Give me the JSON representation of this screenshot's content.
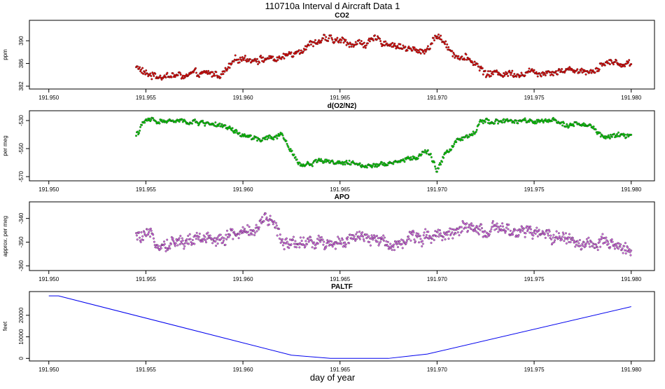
{
  "page_title": "110710a   Interval d Aircraft Data 1",
  "xlabel": "day of year",
  "chart_data": [
    {
      "type": "scatter",
      "title": "CO2",
      "ylabel": "ppm",
      "xlim": [
        191.949,
        191.9812
      ],
      "ylim": [
        381.5,
        393.6
      ],
      "xticks": [
        "191.950",
        "191.955",
        "191.960",
        "191.965",
        "191.970",
        "191.975",
        "191.980"
      ],
      "yticks": [
        "382",
        "386",
        "390"
      ],
      "color": "#ee0000",
      "x_range": [
        191.9545,
        191.98
      ],
      "anchors": [
        [
          191.9545,
          385.5
        ],
        [
          191.955,
          384.0
        ],
        [
          191.957,
          383.8
        ],
        [
          191.959,
          384.2
        ],
        [
          191.9595,
          386.0
        ],
        [
          191.96,
          387.0
        ],
        [
          191.962,
          386.8
        ],
        [
          191.963,
          388.8
        ],
        [
          191.964,
          390.2
        ],
        [
          191.966,
          389.5
        ],
        [
          191.967,
          390.0
        ],
        [
          191.968,
          389.2
        ],
        [
          191.969,
          388.0
        ],
        [
          191.9695,
          388.6
        ],
        [
          191.97,
          391.0
        ],
        [
          191.971,
          387.5
        ],
        [
          191.972,
          386.0
        ],
        [
          191.9725,
          384.2
        ],
        [
          191.975,
          384.5
        ],
        [
          191.977,
          385.0
        ],
        [
          191.978,
          384.6
        ],
        [
          191.9785,
          386.2
        ],
        [
          191.98,
          386.0
        ]
      ],
      "noise": 0.9,
      "point_count": 700
    },
    {
      "type": "scatter",
      "title": "d(O2/N2)",
      "ylabel": "per meg",
      "xlim": [
        191.949,
        191.9812
      ],
      "ylim": [
        -573,
        -523
      ],
      "xticks": [
        "191.950",
        "191.955",
        "191.960",
        "191.965",
        "191.970",
        "191.975",
        "191.980"
      ],
      "yticks": [
        "-530",
        "-550",
        "-570"
      ],
      "color": "#00dd00",
      "x_range": [
        191.9545,
        191.98
      ],
      "anchors": [
        [
          191.9545,
          -540
        ],
        [
          191.955,
          -530
        ],
        [
          191.957,
          -531
        ],
        [
          191.9585,
          -532
        ],
        [
          191.9595,
          -538
        ],
        [
          191.96,
          -541
        ],
        [
          191.961,
          -544
        ],
        [
          191.962,
          -541
        ],
        [
          191.9625,
          -552
        ],
        [
          191.963,
          -562
        ],
        [
          191.964,
          -558
        ],
        [
          191.966,
          -562
        ],
        [
          191.968,
          -559
        ],
        [
          191.969,
          -556
        ],
        [
          191.9695,
          -551
        ],
        [
          191.97,
          -566
        ],
        [
          191.9705,
          -552
        ],
        [
          191.971,
          -545
        ],
        [
          191.972,
          -540
        ],
        [
          191.9722,
          -530
        ],
        [
          191.975,
          -531
        ],
        [
          191.977,
          -532
        ],
        [
          191.978,
          -535
        ],
        [
          191.9785,
          -542
        ],
        [
          191.98,
          -540
        ]
      ],
      "noise": 2.5,
      "point_count": 700
    },
    {
      "type": "scatter",
      "title": "APO",
      "ylabel": "approx. per meg",
      "xlim": [
        191.949,
        191.9812
      ],
      "ylim": [
        -362,
        -333
      ],
      "xticks": [
        "191.950",
        "191.955",
        "191.960",
        "191.965",
        "191.970",
        "191.975",
        "191.980"
      ],
      "yticks": [
        "-340",
        "-350",
        "-360"
      ],
      "color": "#dd66ee",
      "x_range": [
        191.9545,
        191.98
      ],
      "anchors": [
        [
          191.9545,
          -348
        ],
        [
          191.956,
          -350
        ],
        [
          191.958,
          -349
        ],
        [
          191.96,
          -346
        ],
        [
          191.9615,
          -341
        ],
        [
          191.962,
          -349
        ],
        [
          191.964,
          -350
        ],
        [
          191.966,
          -349
        ],
        [
          191.968,
          -350
        ],
        [
          191.97,
          -346
        ],
        [
          191.972,
          -345
        ],
        [
          191.974,
          -346
        ],
        [
          191.976,
          -347
        ],
        [
          191.978,
          -351
        ],
        [
          191.98,
          -353
        ]
      ],
      "noise": 3.8,
      "point_count": 850
    },
    {
      "type": "line",
      "title": "PALTF",
      "ylabel": "feet",
      "xlim": [
        191.949,
        191.9812
      ],
      "ylim": [
        -1200,
        31000
      ],
      "xticks": [
        "191.950",
        "191.955",
        "191.960",
        "191.965",
        "191.970",
        "191.975",
        "191.980"
      ],
      "yticks": [
        "0",
        "10000",
        "20000"
      ],
      "color": "#0000ee",
      "x": [
        191.95,
        191.9505,
        191.9625,
        191.9645,
        191.9675,
        191.9695,
        191.98
      ],
      "y": [
        29000,
        29000,
        1500,
        0,
        0,
        2000,
        24000
      ]
    }
  ]
}
